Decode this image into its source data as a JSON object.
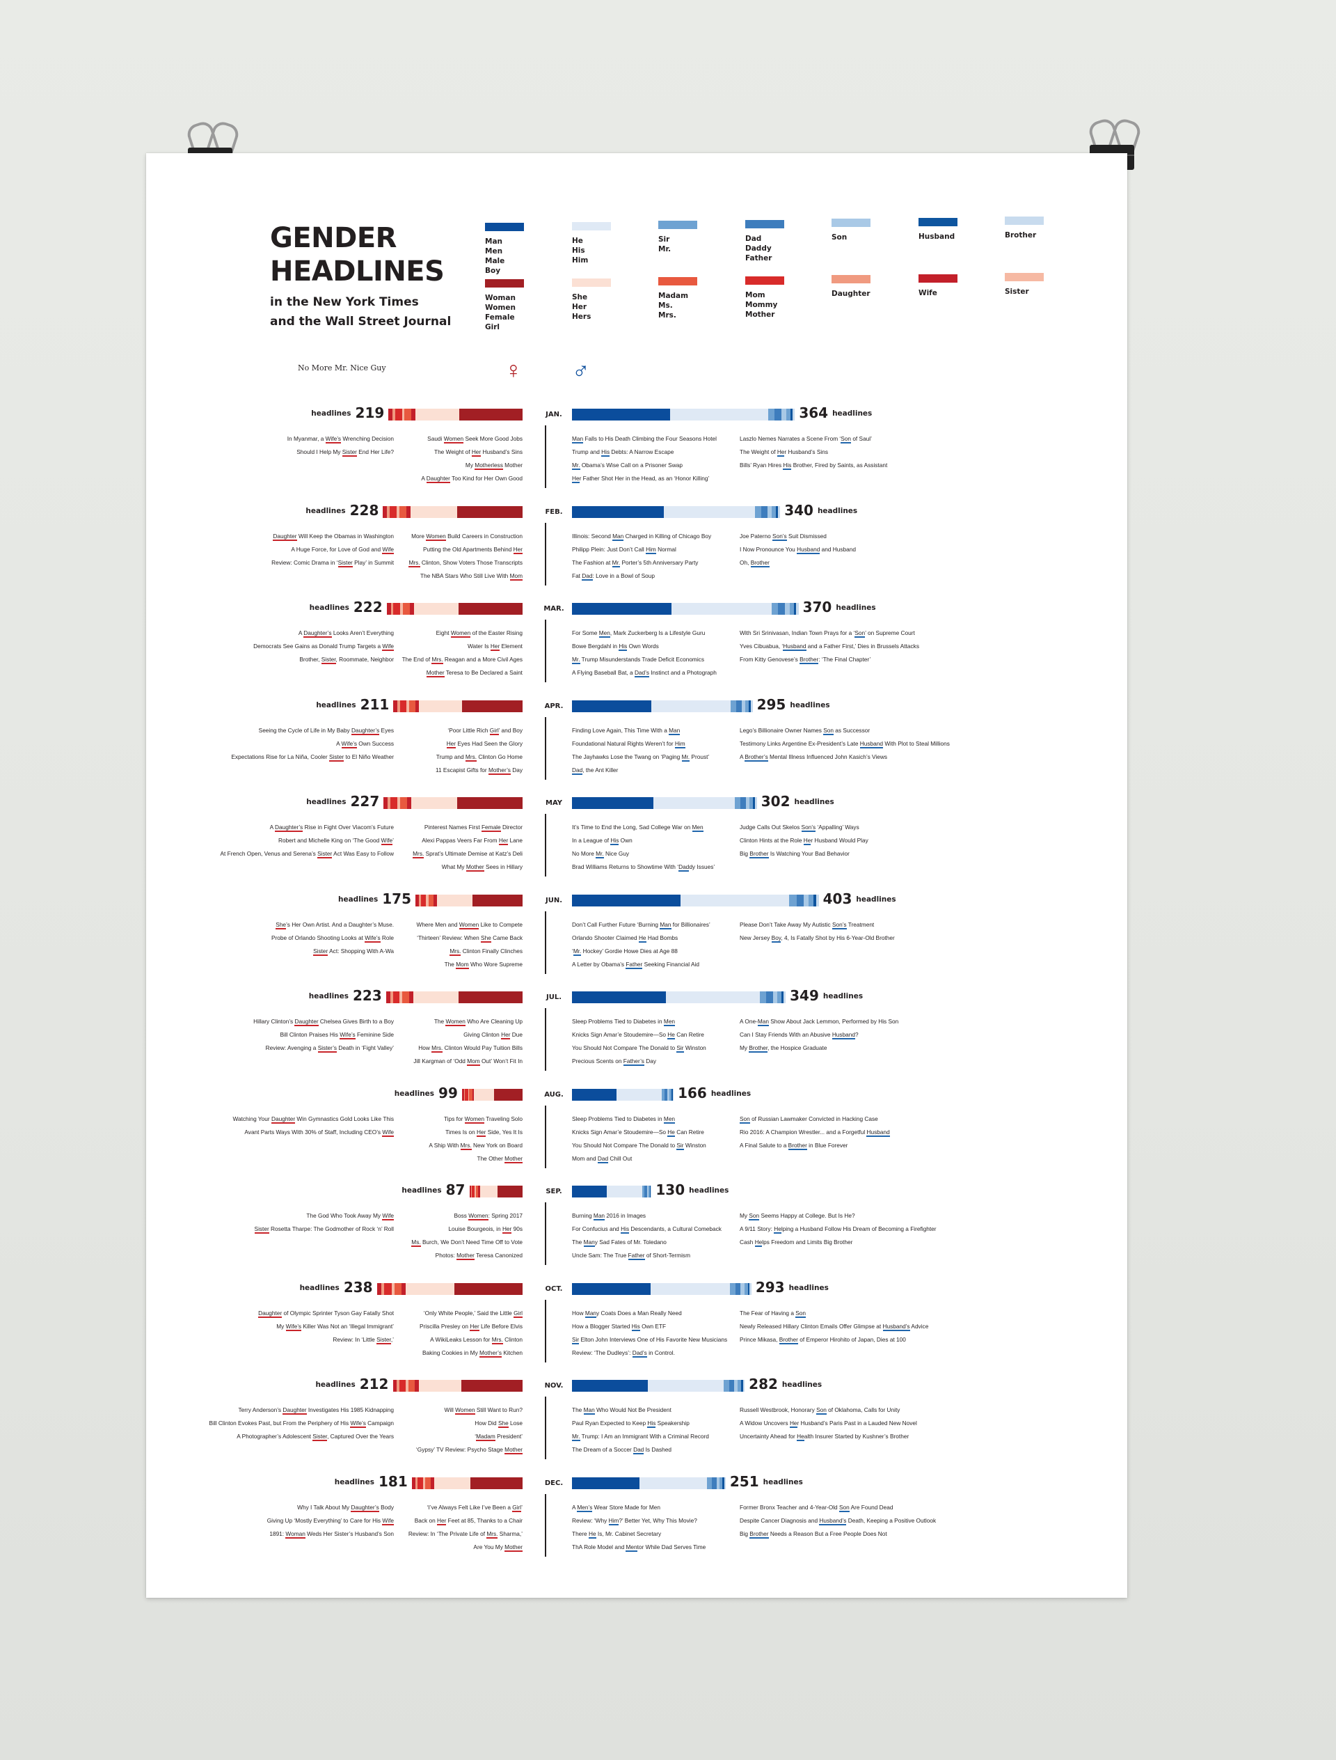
{
  "poster": {
    "title_line1": "GENDER",
    "title_line2": "HEADLINES",
    "subtitle_line1": "in the New York Times",
    "subtitle_line2": "and the Wall Street Journal",
    "caption": "No More Mr. Nice Guy",
    "female_symbol": "♀",
    "male_symbol": "♂",
    "headlines_word": "headlines"
  },
  "legend": {
    "male": [
      {
        "label": "Man\nMen\nMale\nBoy",
        "color": "#0b4d9c"
      },
      {
        "label": "He\nHis\nHim",
        "color": "#dfe9f5"
      },
      {
        "label": "Sir\nMr.",
        "color": "#6ea2d2"
      },
      {
        "label": "Dad\nDaddy\nFather",
        "color": "#3e7dbd"
      },
      {
        "label": "Son",
        "color": "#a9c9e6"
      },
      {
        "label": "Husband",
        "color": "#0e559f"
      },
      {
        "label": "Brother",
        "color": "#c8dbee"
      }
    ],
    "female": [
      {
        "label": "Woman\nWomen\nFemale\nGirl",
        "color": "#a21f24"
      },
      {
        "label": "She\nHer\nHers",
        "color": "#fbe0d4"
      },
      {
        "label": "Madam\nMs.\nMrs.",
        "color": "#e8593f"
      },
      {
        "label": "Mom\nMommy\nMother",
        "color": "#d82b2a"
      },
      {
        "label": "Daughter",
        "color": "#f09a80"
      },
      {
        "label": "Wife",
        "color": "#c3202a"
      },
      {
        "label": "Sister",
        "color": "#f6b9a3"
      }
    ]
  },
  "chart_data": {
    "type": "bar",
    "categories": [
      "JAN.",
      "FEB.",
      "MAR.",
      "APR.",
      "MAY",
      "JUN.",
      "JUL.",
      "AUG.",
      "SEP.",
      "OCT.",
      "NOV.",
      "DEC."
    ],
    "series": [
      {
        "values": [
          219,
          228,
          222,
          211,
          227,
          175,
          223,
          99,
          87,
          238,
          212,
          181
        ]
      },
      {
        "values": [
          364,
          340,
          370,
          295,
          302,
          403,
          349,
          166,
          130,
          293,
          282,
          251
        ]
      }
    ]
  },
  "months": [
    {
      "label": "JAN.",
      "female_count": 219,
      "male_count": 364,
      "female_headlines": {
        "left": [
          "In Myanmar, a Wife’s Wrenching Decision",
          "Should I Help My Sister End Her Life?"
        ],
        "right": [
          "Saudi Women Seek More Good Jobs",
          "The Weight of Her Husband’s Sins",
          "My Motherless Mother",
          "A Daughter Too Kind for Her Own Good"
        ]
      },
      "male_headlines": {
        "left": [
          "Man Falls to His Death Climbing the Four Seasons Hotel",
          "Trump and His Debts: A Narrow Escape",
          "Mr. Obama’s Wise Call on a Prisoner Swap",
          "Her Father Shot Her in the Head, as an ‘Honor Killing’"
        ],
        "right": [
          "Laszlo Nemes Narrates a Scene From ‘Son of Saul’",
          "The Weight of Her Husband’s Sins",
          "Bills’ Ryan Hires His Brother, Fired by Saints, as Assistant"
        ]
      }
    },
    {
      "label": "FEB.",
      "female_count": 228,
      "male_count": 340,
      "female_headlines": {
        "left": [
          "Daughter Will Keep the Obamas in Washington",
          "A Huge Force, for Love of God and Wife",
          "Review: Comic Drama in ‘Sister Play’ in Summit"
        ],
        "right": [
          "More Women Build Careers in Construction",
          "Putting the Old Apartments Behind Her",
          "Mrs. Clinton, Show Voters Those Transcripts",
          "The NBA Stars Who Still Live With Mom"
        ]
      },
      "male_headlines": {
        "left": [
          "Illinois: Second Man Charged in Killing of Chicago Boy",
          "Philipp Plein: Just Don’t Call Him Normal",
          "The Fashion at Mr. Porter’s 5th Anniversary Party",
          "Fat Dad: Love in a Bowl of Soup"
        ],
        "right": [
          "Joe Paterno Son’s Suit Dismissed",
          "I Now Pronounce You Husband and Husband",
          "Oh, Brother"
        ]
      }
    },
    {
      "label": "MAR.",
      "female_count": 222,
      "male_count": 370,
      "female_headlines": {
        "left": [
          "A Daughter’s Looks Aren’t Everything",
          "Democrats See Gains as Donald Trump Targets a Wife",
          "Brother, Sister, Roommate, Neighbor"
        ],
        "right": [
          "Eight Women of the Easter Rising",
          "Water Is Her Element",
          "The End of Mrs. Reagan and a More Civil Ages",
          "Mother Teresa to Be Declared a Saint"
        ]
      },
      "male_headlines": {
        "left": [
          "For Some Men, Mark Zuckerberg Is a Lifestyle Guru",
          "Bowe Bergdahl in His Own Words",
          "Mr. Trump Misunderstands Trade Deficit Economics",
          "A Flying Baseball Bat, a Dad’s Instinct and a Photograph"
        ],
        "right": [
          "With Sri Srinivasan, Indian Town Prays for a ‘Son’ on Supreme Court",
          "Yves Cibuabua, ‘Husband and a Father First,’ Dies in Brussels Attacks",
          "From Kitty Genovese’s Brother: ‘The Final Chapter’"
        ]
      }
    },
    {
      "label": "APR.",
      "female_count": 211,
      "male_count": 295,
      "female_headlines": {
        "left": [
          "Seeing the Cycle of Life in My Baby Daughter’s Eyes",
          "A Wife’s Own Success",
          "Expectations Rise for La Niña, Cooler Sister to El Niño Weather"
        ],
        "right": [
          "‘Poor Little Rich Girl’ and Boy",
          "Her Eyes Had Seen the Glory",
          "Trump and Mrs. Clinton Go Home",
          "11 Escapist Gifts for Mother’s Day"
        ]
      },
      "male_headlines": {
        "left": [
          "Finding Love Again, This Time With a Man",
          "Foundational Natural Rights Weren’t for Him",
          "The Jayhawks Lose the Twang on ‘Paging Mr. Proust’",
          "Dad, the Ant Killer"
        ],
        "right": [
          "Lego’s Billionaire Owner Names Son as Successor",
          "Testimony Links Argentine Ex-President’s Late Husband With Plot to Steal Millions",
          "A Brother’s Mental Illness Influenced John Kasich’s Views"
        ]
      }
    },
    {
      "label": "MAY",
      "female_count": 227,
      "male_count": 302,
      "female_headlines": {
        "left": [
          "A Daughter’s Rise in Fight Over Viacom’s Future",
          "Robert and Michelle King on ‘The Good Wife’",
          "At French Open, Venus and Serena’s Sister Act Was Easy to Follow"
        ],
        "right": [
          "Pinterest Names First Female Director",
          "Alexi Pappas Veers Far From Her Lane",
          "Mrs. Sprat’s Ultimate Demise at Katz’s Deli",
          "What My Mother Sees in Hillary"
        ]
      },
      "male_headlines": {
        "left": [
          "It’s Time to End the Long, Sad College War on Men",
          "In a League of His Own",
          "No More Mr. Nice Guy",
          "Brad Williams Returns to Showtime With ‘Daddy Issues’"
        ],
        "right": [
          "Judge Calls Out Skelos Son’s ‘Appalling’ Ways",
          "Clinton Hints at the Role Her Husband Would Play",
          "Big Brother Is Watching Your Bad Behavior"
        ]
      }
    },
    {
      "label": "JUN.",
      "female_count": 175,
      "male_count": 403,
      "female_headlines": {
        "left": [
          "She’s Her Own Artist. And a Daughter’s Muse.",
          "Probe of Orlando Shooting Looks at Wife’s Role",
          "Sister Act: Shopping With A-Wa"
        ],
        "right": [
          "Where Men and Women Like to Compete",
          "‘Thirteen’ Review: When She Came Back",
          "Mrs. Clinton Finally Clinches",
          "The Mom Who Wore Supreme"
        ]
      },
      "male_headlines": {
        "left": [
          "Don’t Call Further Future ‘Burning Man for Billionaires’",
          "Orlando Shooter Claimed He Had Bombs",
          "‘Mr. Hockey’ Gordie Howe Dies at Age 88",
          "A Letter by Obama’s Father Seeking Financial Aid"
        ],
        "right": [
          "Please Don’t Take Away My Autistic Son’s Treatment",
          "New Jersey Boy, 4, Is Fatally Shot by His 6-Year-Old Brother"
        ]
      }
    },
    {
      "label": "JUL.",
      "female_count": 223,
      "male_count": 349,
      "female_headlines": {
        "left": [
          "Hillary Clinton’s Daughter Chelsea Gives Birth to a Boy",
          "Bill Clinton Praises His Wife’s Feminine Side",
          "Review: Avenging a Sister’s Death in ‘Fight Valley’"
        ],
        "right": [
          "The Women Who Are Cleaning Up",
          "Giving Clinton Her Due",
          "How Mrs. Clinton Would Pay Tuition Bills",
          "Jill Kargman of ‘Odd Mom Out’ Won’t Fit In"
        ]
      },
      "male_headlines": {
        "left": [
          "Sleep Problems Tied to Diabetes in Men",
          "Knicks Sign Amar’e Stoudemire—So He Can Retire",
          "You Should Not Compare The Donald to Sir Winston",
          "Precious Scents on Father’s Day"
        ],
        "right": [
          "A One-Man Show About Jack Lemmon, Performed by His Son",
          "Can I Stay Friends With an Abusive Husband?",
          "My Brother, the Hospice Graduate"
        ]
      }
    },
    {
      "label": "AUG.",
      "female_count": 99,
      "male_count": 166,
      "female_headlines": {
        "left": [
          "Watching Your Daughter Win Gymnastics Gold Looks Like This",
          "Avant Parts Ways With 30% of Staff, Including CEO’s Wife"
        ],
        "right": [
          "Tips for Women Traveling Solo",
          "Times Is on Her Side, Yes It Is",
          "A Ship With Mrs. New York on Board",
          "The Other Mother"
        ]
      },
      "male_headlines": {
        "left": [
          "Sleep Problems Tied to Diabetes in Men",
          "Knicks Sign Amar’e Stoudemire—So He Can Retire",
          "You Should Not Compare The Donald to Sir Winston",
          "Mom and Dad Chill Out"
        ],
        "right": [
          "Son of Russian Lawmaker Convicted in Hacking Case",
          "Rio 2016: A Champion Wrestler... and a Forgetful Husband",
          "A Final Salute to a Brother in Blue Forever"
        ]
      }
    },
    {
      "label": "SEP.",
      "female_count": 87,
      "male_count": 130,
      "female_headlines": {
        "left": [
          "The God Who Took Away My Wife",
          "Sister Rosetta Tharpe: The Godmother of Rock ‘n’ Roll"
        ],
        "right": [
          "Boss Women: Spring 2017",
          "Louise Bourgeois, in Her 90s",
          "Ms. Burch, We Don’t Need Time Off to Vote",
          "Photos: Mother Teresa Canonized"
        ]
      },
      "male_headlines": {
        "left": [
          "Burning Man 2016 in Images",
          "For Confucius and His Descendants, a Cultural Comeback",
          "The Many Sad Fates of Mr. Toledano",
          "Uncle Sam: The True Father of Short-Termism"
        ],
        "right": [
          "My Son Seems Happy at College. But Is He?",
          "A 9/11 Story: Helping a Husband Follow His Dream of Becoming a Firefighter",
          "Cash Helps Freedom and Limits Big Brother"
        ]
      }
    },
    {
      "label": "OCT.",
      "female_count": 238,
      "male_count": 293,
      "female_headlines": {
        "left": [
          "Daughter of Olympic Sprinter Tyson Gay Fatally Shot",
          "My Wife’s Killer Was Not an ‘Illegal Immigrant’",
          "Review: In ‘Little Sister,’"
        ],
        "right": [
          "‘Only White People,’ Said the Little Girl",
          "Priscilla Presley on Her Life Before Elvis",
          "A WikiLeaks Lesson for Mrs. Clinton",
          "Baking Cookies in My Mother’s Kitchen"
        ]
      },
      "male_headlines": {
        "left": [
          "How Many Coats Does a Man Really Need",
          "How a Blogger Started His Own ETF",
          "Sir Elton John Interviews One of His Favorite New Musicians",
          "Review: ‘The Dudleys’: Dad’s in Control."
        ],
        "right": [
          "The Fear of Having a Son",
          "Newly Released Hillary Clinton Emails Offer Glimpse at Husband’s Advice",
          "Prince Mikasa, Brother of Emperor Hirohito of Japan, Dies at 100"
        ]
      }
    },
    {
      "label": "NOV.",
      "female_count": 212,
      "male_count": 282,
      "female_headlines": {
        "left": [
          "Terry Anderson’s Daughter Investigates His 1985 Kidnapping",
          "Bill Clinton Evokes Past, but From the Periphery of His Wife’s Campaign",
          "A Photographer’s Adolescent Sister, Captured Over the Years"
        ],
        "right": [
          "Will Women Still Want to Run?",
          "How Did She Lose",
          "‘Madam President’",
          "‘Gypsy’ TV Review: Psycho Stage Mother"
        ]
      },
      "male_headlines": {
        "left": [
          "The Man Who Would Not Be President",
          "Paul Ryan Expected to Keep His Speakership",
          "Mr. Trump: I Am an Immigrant With a Criminal Record",
          "The Dream of a Soccer Dad Is Dashed"
        ],
        "right": [
          "Russell Westbrook, Honorary Son of Oklahoma, Calls for Unity",
          "A Widow Uncovers Her Husband’s Paris Past in a Lauded New Novel",
          "Uncertainty Ahead for Health Insurer Started by Kushner’s Brother"
        ]
      }
    },
    {
      "label": "DEC.",
      "female_count": 181,
      "male_count": 251,
      "female_headlines": {
        "left": [
          "Why I Talk About My Daughter’s Body",
          "Giving Up ‘Mostly Everything’ to Care for His Wife",
          "1891: Woman Weds Her Sister’s Husband’s Son"
        ],
        "right": [
          "‘I’ve Always Felt Like I’ve Been a Girl’",
          "Back on Her Feet at 85, Thanks to a Chair",
          "Review: In ‘The Private Life of Mrs. Sharma,’",
          "Are You My Mother"
        ]
      },
      "male_headlines": {
        "left": [
          "A Men’s Wear Store Made for Men",
          "Review: ‘Why Him?’ Better Yet, Why This Movie?",
          "There He Is, Mr. Cabinet Secretary",
          "ThA Role Model and Mentor While Dad Serves Time"
        ],
        "right": [
          "Former Bronx Teacher and 4-Year-Old Son Are Found Dead",
          "Despite Cancer Diagnosis and Husband’s Death, Keeping a Positive Outlook",
          "Big Brother Needs a Reason But a Free People Does Not"
        ]
      }
    }
  ]
}
